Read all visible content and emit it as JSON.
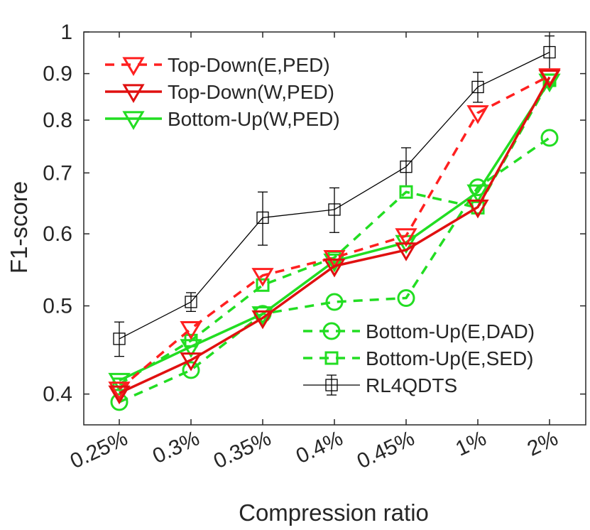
{
  "chart_data": {
    "type": "line",
    "title": "",
    "xlabel": "Compression ratio",
    "ylabel": "F1-score",
    "yscale": "log",
    "ylim": [
      0.37,
      1.0
    ],
    "yticks": [
      0.4,
      0.5,
      0.6,
      0.7,
      0.8,
      0.9,
      1.0
    ],
    "ytick_labels": [
      "0.4",
      "0.5",
      "0.6",
      "0.7",
      "0.8",
      "0.9",
      "1"
    ],
    "categories": [
      "0.25%",
      "0.3%",
      "0.35%",
      "0.4%",
      "0.45%",
      "1%",
      "2%"
    ],
    "grid": false,
    "legend_placement": [
      "top-left",
      "bottom-right"
    ],
    "series": [
      {
        "name": "Top-Down(E,PED)",
        "color": "#ff2020",
        "linestyle": "dashed",
        "marker": "triangle-down",
        "legend_group": 0,
        "values": [
          0.405,
          0.472,
          0.54,
          0.565,
          0.597,
          0.815,
          0.895
        ]
      },
      {
        "name": "Top-Down(W,PED)",
        "color": "#e01010",
        "linestyle": "solid",
        "marker": "triangle-down",
        "legend_group": 0,
        "values": [
          0.401,
          0.436,
          0.485,
          0.553,
          0.576,
          0.642,
          0.892
        ]
      },
      {
        "name": "Bottom-Up(W,PED)",
        "color": "#22dd22",
        "linestyle": "solid",
        "marker": "triangle-down",
        "legend_group": 0,
        "values": [
          0.414,
          0.451,
          0.49,
          0.56,
          0.587,
          0.667,
          0.883
        ]
      },
      {
        "name": "Bottom-Up(E,DAD)",
        "color": "#22dd22",
        "linestyle": "dashed",
        "marker": "circle",
        "legend_group": 1,
        "values": [
          0.392,
          0.425,
          0.49,
          0.505,
          0.51,
          0.675,
          0.765
        ]
      },
      {
        "name": "Bottom-Up(E,SED)",
        "color": "#22dd22",
        "linestyle": "dashed",
        "marker": "square",
        "legend_group": 1,
        "values": [
          0.41,
          0.458,
          0.527,
          0.565,
          0.667,
          0.641,
          0.885
        ]
      },
      {
        "name": "RL4QDTS",
        "color": "#000000",
        "linestyle": "solid",
        "marker": "square-errorbar",
        "legend_group": 1,
        "values": [
          0.46,
          0.505,
          0.625,
          0.638,
          0.711,
          0.87,
          0.95
        ],
        "error": [
          0.02,
          0.012,
          0.042,
          0.036,
          0.035,
          0.033,
          0.04
        ]
      }
    ]
  }
}
